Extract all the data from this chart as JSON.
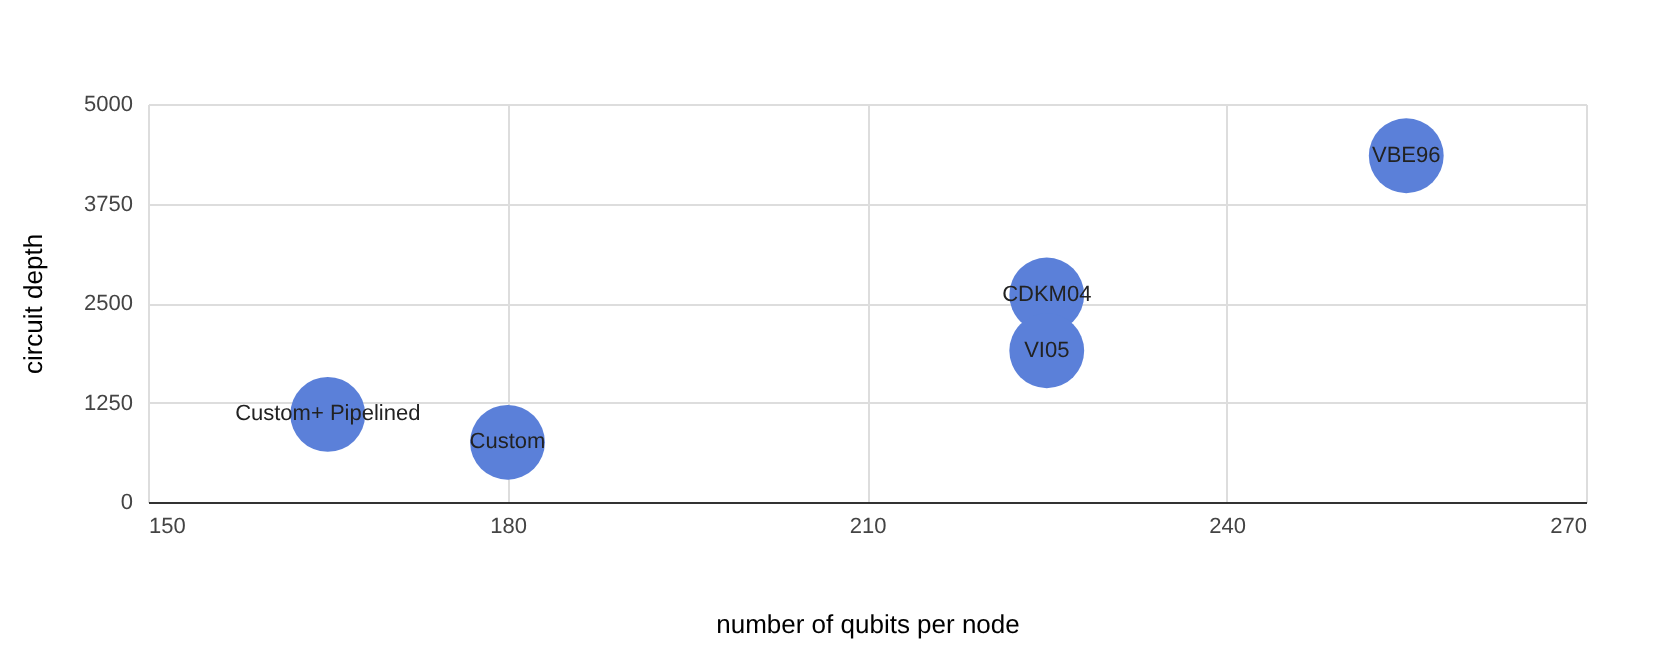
{
  "chart_data": {
    "type": "bubble",
    "xlabel": "number of qubits per node",
    "ylabel": "circuit depth",
    "x": [
      165,
      180,
      225,
      225,
      255
    ],
    "series": [
      {
        "color": "#5b80d9",
        "values": [
          1100,
          750,
          2600,
          1900,
          4350
        ],
        "sizes": [
          1,
          1,
          1,
          1,
          1
        ],
        "value_labels": [
          "Custom+ Pipelined",
          "Custom",
          "CDKM04",
          "VI05",
          "VBE96"
        ]
      }
    ],
    "xlim": [
      150,
      270
    ],
    "xticks": [
      150,
      180,
      210,
      240,
      270
    ],
    "ylim": [
      0,
      5000
    ],
    "yticks": [
      0,
      1250,
      2500,
      3750,
      5000
    ],
    "grid": true
  }
}
